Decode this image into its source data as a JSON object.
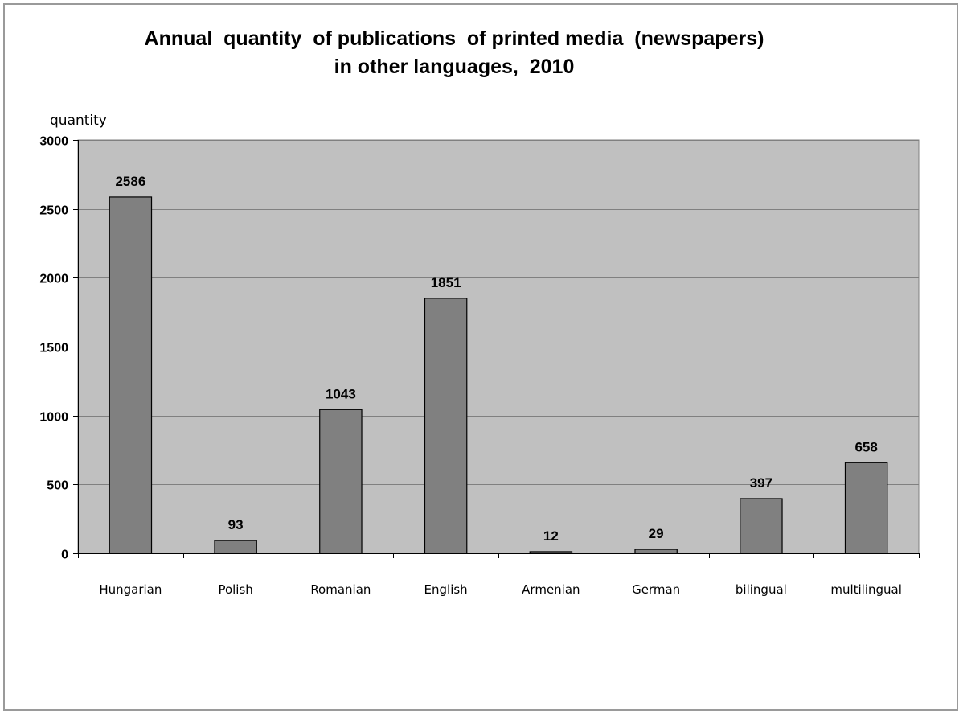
{
  "chart_data": {
    "type": "bar",
    "title_line1": "Annual  quantity  of publications  of printed media  (newspapers)",
    "title_line2": "in other languages,  2010",
    "ylabel": "quantity",
    "xlabel": "",
    "ylim": [
      0,
      3000
    ],
    "yticks": [
      0,
      500,
      1000,
      1500,
      2000,
      2500,
      3000
    ],
    "grid": true,
    "legend": "none",
    "categories": [
      "Hungarian",
      "Polish",
      "Romanian",
      "English",
      "Armenian",
      "German",
      "bilingual",
      "multilingual"
    ],
    "values": [
      2586,
      93,
      1043,
      1851,
      12,
      29,
      397,
      658
    ],
    "colors": {
      "plot_background": "#c0c0c0",
      "bar_fill": "#808080",
      "bar_stroke": "#000000",
      "gridline": "#808080"
    }
  }
}
